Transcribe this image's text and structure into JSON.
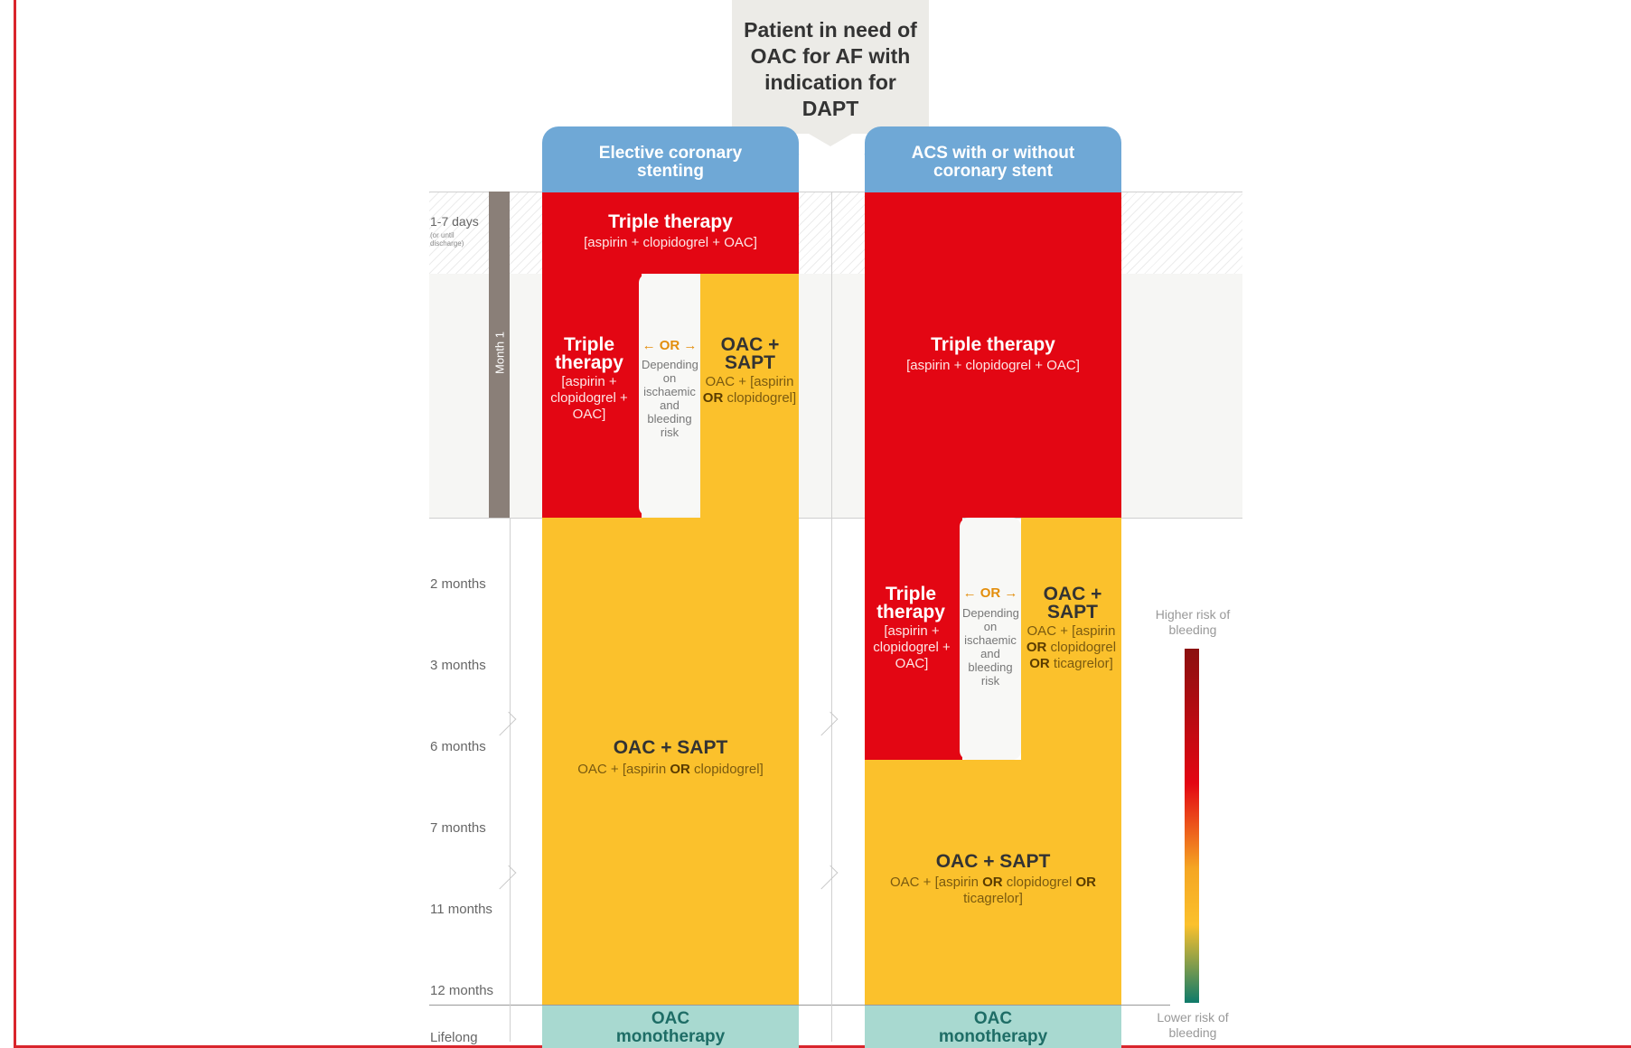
{
  "root": {
    "text": "Patient in need of OAC for AF with indication for DAPT"
  },
  "branches": {
    "left": "Elective coronary stenting",
    "right": "ACS with or without coronary stent"
  },
  "timeline": {
    "first": "1-7 days",
    "first_note": "(or until discharge)",
    "month1": "Month 1",
    "months": [
      "2 months",
      "3 months",
      "6 months",
      "7 months",
      "11 months",
      "12 months"
    ],
    "last": "Lifelong"
  },
  "left": {
    "top_title": "Triple therapy",
    "top_sub": "[aspirin + clopidogrel + OAC]",
    "mid_title": "Triple therapy",
    "mid_sub": "[aspirin + clopidogrel + OAC]",
    "or": "← OR →",
    "depending": "Depending on ischaemic and bleeding risk",
    "alt_title": "OAC + SAPT",
    "alt_sub_a": "OAC + [aspirin ",
    "alt_or": "OR",
    "alt_sub_b": " clopidogrel]",
    "long_title": "OAC + SAPT",
    "long_sub_a": "OAC + [aspirin ",
    "long_or": "OR",
    "long_sub_b": " clopidogrel]",
    "mono": "OAC monotherapy"
  },
  "right": {
    "top_title": "Triple therapy",
    "top_sub": "[aspirin + clopidogrel + OAC]",
    "mid_title": "Triple therapy",
    "mid_sub": "[aspirin + clopidogrel + OAC]",
    "or": "← OR →",
    "depending": "Depending on ischaemic and bleeding risk",
    "alt_title": "OAC + SAPT",
    "alt_sub_a": "OAC + [aspirin ",
    "alt_or1": "OR",
    "alt_sub_b": " clopidogrel ",
    "alt_or2": "OR",
    "alt_sub_c": " ticagrelor]",
    "long_title": "OAC + SAPT",
    "long_sub_a": "OAC + [aspirin ",
    "long_or1": "OR",
    "long_sub_b": " clopidogrel ",
    "long_or2": "OR",
    "long_sub_c": " ticagrelor]",
    "mono": "OAC monotherapy"
  },
  "legend": {
    "high": "Higher risk of bleeding",
    "low": "Lower risk of bleeding"
  },
  "colors": {
    "red": "#e30613",
    "yellow": "#fbc12c",
    "blue": "#6fa8d6",
    "teal": "#a8d9d0"
  }
}
